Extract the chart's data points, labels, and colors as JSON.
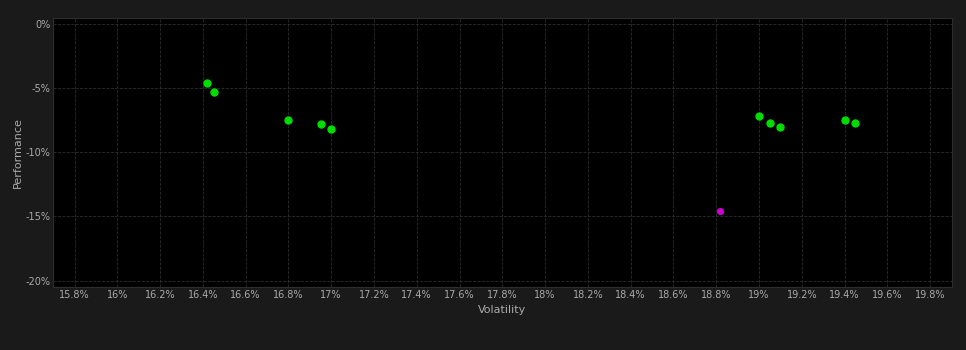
{
  "background_color": "#1a1a1a",
  "plot_bg_color": "#000000",
  "xlabel": "Volatility",
  "ylabel": "Performance",
  "xlim": [
    0.157,
    0.199
  ],
  "ylim": [
    -0.205,
    0.005
  ],
  "green_points": [
    [
      0.1642,
      -0.046
    ],
    [
      0.1645,
      -0.053
    ],
    [
      0.168,
      -0.075
    ],
    [
      0.1695,
      -0.078
    ],
    [
      0.17,
      -0.082
    ],
    [
      0.19,
      -0.072
    ],
    [
      0.1905,
      -0.077
    ],
    [
      0.191,
      -0.08
    ],
    [
      0.194,
      -0.075
    ],
    [
      0.1945,
      -0.077
    ]
  ],
  "magenta_points": [
    [
      0.1882,
      -0.146
    ]
  ],
  "green_color": "#00dd00",
  "magenta_color": "#cc00cc",
  "text_color": "#aaaaaa",
  "marker_size": 5,
  "axis_fontsize": 8,
  "tick_fontsize": 7
}
